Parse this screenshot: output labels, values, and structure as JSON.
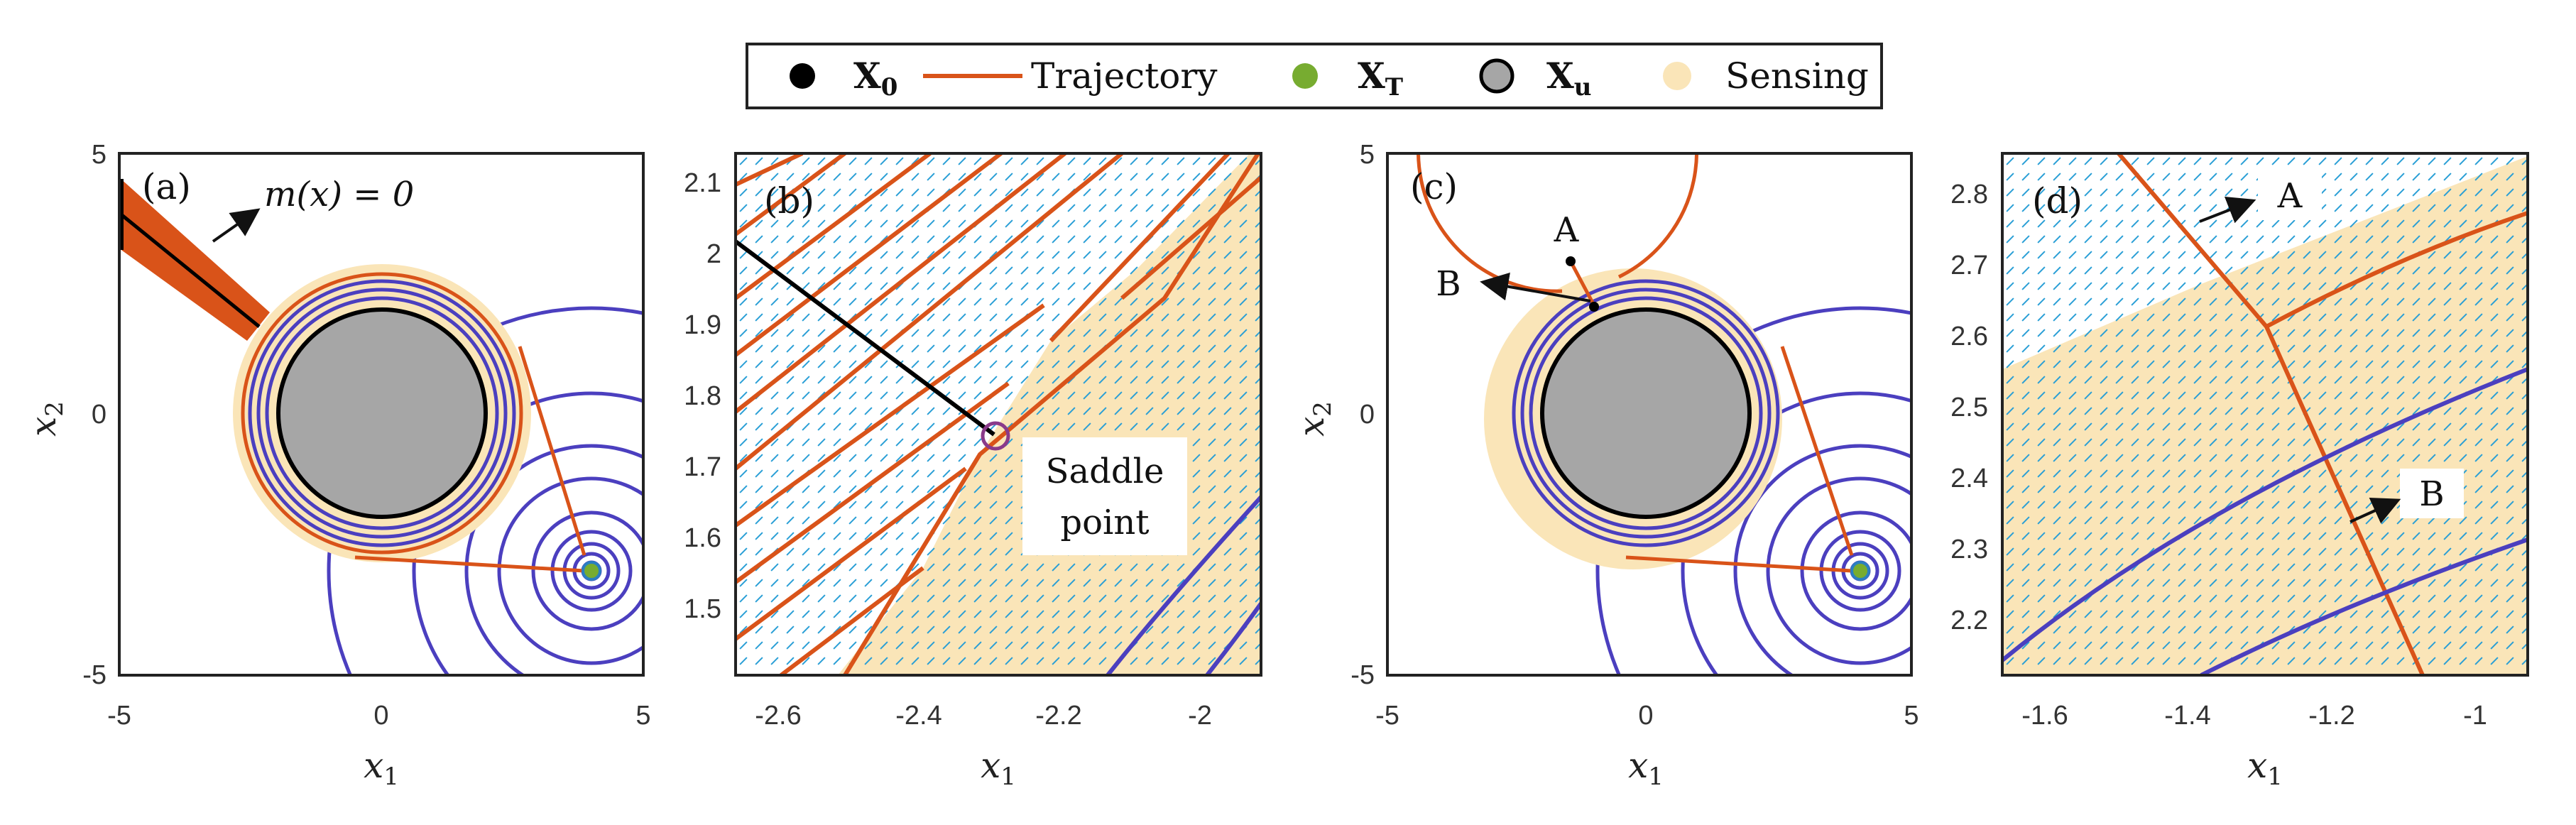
{
  "colors": {
    "trajectory": "#d95319",
    "target": "#77ac30",
    "target_ring": "#2a7fc0",
    "unsafe": "#a6a6a6",
    "sensing": "#fae5b8",
    "level_set": "#4b3fbf",
    "quiver": "#2a9fd6",
    "start": "#000000"
  },
  "legend": {
    "x0_label": "X",
    "x0_sub": "0",
    "trajectory_label": "Trajectory",
    "xt_label": "X",
    "xt_sub": "T",
    "xu_label": "X",
    "xu_sub": "u",
    "sensing_label": "Sensing"
  },
  "panels": {
    "a": {
      "tag": "(a)",
      "annotation": "m(x) = 0",
      "xlabel": "x",
      "xlabel_sub": "1",
      "ylabel": "x",
      "ylabel_sub": "2",
      "xticks": [
        "-5",
        "0",
        "5"
      ],
      "yticks": [
        "5",
        "0",
        "-5"
      ]
    },
    "b": {
      "tag": "(b)",
      "saddle_line1": "Saddle",
      "saddle_line2": "point",
      "xlabel": "x",
      "xlabel_sub": "1",
      "xticks": [
        "-2.6",
        "-2.4",
        "-2.2",
        "-2"
      ],
      "yticks": [
        "2.1",
        "2",
        "1.9",
        "1.8",
        "1.7",
        "1.6",
        "1.5"
      ]
    },
    "c": {
      "tag": "(c)",
      "label_a": "A",
      "label_b": "B",
      "xlabel": "x",
      "xlabel_sub": "1",
      "ylabel": "x",
      "ylabel_sub": "2",
      "xticks": [
        "-5",
        "0",
        "5"
      ],
      "yticks": [
        "5",
        "0",
        "-5"
      ]
    },
    "d": {
      "tag": "(d)",
      "label_a": "A",
      "label_b": "B",
      "xlabel": "x",
      "xlabel_sub": "1",
      "xticks": [
        "-1.6",
        "-1.4",
        "-1.2",
        "-1"
      ],
      "yticks": [
        "2.8",
        "2.7",
        "2.6",
        "2.5",
        "2.4",
        "2.3",
        "2.2"
      ]
    }
  },
  "chart_data": [
    {
      "panel": "a",
      "type": "line",
      "xlabel": "x1",
      "ylabel": "x2",
      "xlim": [
        -5,
        5
      ],
      "ylim": [
        -5,
        5
      ],
      "unsafe_set": {
        "center": [
          0,
          0
        ],
        "radius": 2
      },
      "target_set": {
        "center": [
          4,
          -3
        ],
        "radius": 0.25
      },
      "trajectory": [
        [
          2.65,
          1.35
        ],
        [
          4,
          -3
        ],
        [
          -0.3,
          -2.8
        ]
      ],
      "annotation": "m(x) = 0"
    },
    {
      "panel": "b",
      "type": "line",
      "xlabel": "x1",
      "xlim": [
        -2.7,
        -1.95
      ],
      "ylim": [
        1.41,
        2.15
      ],
      "saddle_point": [
        -2.32,
        1.75
      ],
      "annotation": "Saddle point"
    },
    {
      "panel": "c",
      "type": "line",
      "xlabel": "x1",
      "ylabel": "x2",
      "xlim": [
        -5,
        5
      ],
      "ylim": [
        -5,
        5
      ],
      "unsafe_set": {
        "center": [
          0,
          0
        ],
        "radius": 2
      },
      "target_set": {
        "center": [
          4,
          -3
        ],
        "radius": 0.25
      },
      "points": {
        "A": [
          -1.4,
          2.9
        ],
        "B": [
          -0.9,
          2.1
        ]
      }
    },
    {
      "panel": "d",
      "type": "line",
      "xlabel": "x1",
      "xlim": [
        -1.65,
        -0.92
      ],
      "ylim": [
        2.12,
        2.85
      ],
      "labels": [
        "A",
        "B"
      ]
    }
  ]
}
